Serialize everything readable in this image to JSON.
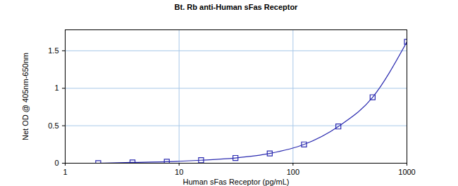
{
  "chart_data": {
    "type": "line",
    "title": "Bt. Rb anti-Human sFas Receptor",
    "x_label": "Human sFas Receptor (pg/mL)",
    "y_label": "Net OD @ 405nm-650nm",
    "x": [
      1.95,
      3.9,
      7.8,
      15.6,
      31.25,
      62.5,
      125,
      250,
      500,
      1000
    ],
    "series": [
      {
        "name": "Human sFas Receptor",
        "color": "#2b2bb0",
        "values": [
          0.0,
          0.01,
          0.02,
          0.04,
          0.07,
          0.13,
          0.25,
          0.49,
          0.88,
          1.62
        ],
        "marker": "square",
        "line_style": "solid"
      }
    ],
    "xlim": [
      1,
      1000
    ],
    "xticks": [
      1,
      10,
      100,
      1000
    ],
    "ylim": [
      0,
      1.78
    ],
    "yticks": [
      0,
      0.5,
      1,
      1.5
    ],
    "log": "x",
    "grid": true
  }
}
